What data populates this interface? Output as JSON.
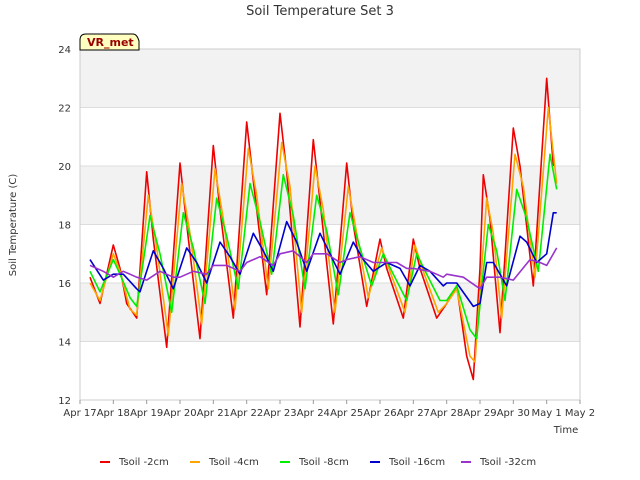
{
  "chart_data": {
    "type": "line",
    "title": "Soil Temperature Set 3",
    "xlabel": "Time",
    "ylabel": "Soil Temperature (C)",
    "ylim": [
      12,
      24
    ],
    "yticks": [
      12,
      14,
      16,
      18,
      20,
      22,
      24
    ],
    "xlim": [
      "2024-04-17",
      "2024-05-02"
    ],
    "xtick_labels": [
      "Apr 17",
      "Apr 18",
      "Apr 19",
      "Apr 20",
      "Apr 21",
      "Apr 22",
      "Apr 23",
      "Apr 24",
      "Apr 25",
      "Apr 26",
      "Apr 27",
      "Apr 28",
      "Apr 29",
      "Apr 30",
      "May 1",
      "May 2"
    ],
    "grid": "horizontal bands",
    "legend_position": "bottom",
    "annotation": "VR_met",
    "x_unit": "days",
    "series": [
      {
        "name": "Tsoil -2cm",
        "color": "#ee0000",
        "points": [
          [
            0.3,
            16.2
          ],
          [
            0.6,
            15.3
          ],
          [
            1.0,
            17.3
          ],
          [
            1.2,
            16.5
          ],
          [
            1.4,
            15.3
          ],
          [
            1.7,
            14.8
          ],
          [
            2.0,
            19.8
          ],
          [
            2.2,
            17.5
          ],
          [
            2.6,
            13.8
          ],
          [
            3.0,
            20.1
          ],
          [
            3.2,
            18.0
          ],
          [
            3.6,
            14.1
          ],
          [
            4.0,
            20.7
          ],
          [
            4.2,
            18.5
          ],
          [
            4.6,
            14.8
          ],
          [
            5.0,
            21.5
          ],
          [
            5.2,
            19.5
          ],
          [
            5.6,
            15.6
          ],
          [
            6.0,
            21.8
          ],
          [
            6.2,
            19.8
          ],
          [
            6.6,
            14.5
          ],
          [
            7.0,
            20.9
          ],
          [
            7.2,
            18.8
          ],
          [
            7.6,
            14.6
          ],
          [
            8.0,
            20.1
          ],
          [
            8.2,
            18.0
          ],
          [
            8.6,
            15.2
          ],
          [
            9.0,
            17.5
          ],
          [
            9.2,
            16.5
          ],
          [
            9.7,
            14.8
          ],
          [
            10.0,
            17.5
          ],
          [
            10.2,
            16.5
          ],
          [
            10.7,
            14.8
          ],
          [
            11.0,
            15.3
          ],
          [
            11.3,
            15.9
          ],
          [
            11.6,
            13.5
          ],
          [
            11.8,
            12.7
          ],
          [
            12.0,
            16.5
          ],
          [
            12.1,
            19.7
          ],
          [
            12.3,
            18.2
          ],
          [
            12.6,
            14.3
          ],
          [
            13.0,
            21.3
          ],
          [
            13.2,
            20.0
          ],
          [
            13.6,
            15.9
          ],
          [
            14.0,
            23.0
          ],
          [
            14.2,
            20.0
          ]
        ]
      },
      {
        "name": "Tsoil -4cm",
        "color": "#ffa500",
        "points": [
          [
            0.3,
            16.0
          ],
          [
            0.6,
            15.4
          ],
          [
            1.0,
            17.0
          ],
          [
            1.2,
            16.4
          ],
          [
            1.5,
            15.1
          ],
          [
            1.7,
            14.9
          ],
          [
            2.05,
            19.0
          ],
          [
            2.3,
            17.2
          ],
          [
            2.65,
            14.2
          ],
          [
            3.05,
            19.4
          ],
          [
            3.3,
            17.7
          ],
          [
            3.65,
            14.6
          ],
          [
            4.05,
            19.9
          ],
          [
            4.3,
            18.2
          ],
          [
            4.65,
            15.1
          ],
          [
            5.05,
            20.6
          ],
          [
            5.3,
            19.0
          ],
          [
            5.65,
            15.8
          ],
          [
            6.05,
            20.8
          ],
          [
            6.3,
            19.3
          ],
          [
            6.65,
            15.0
          ],
          [
            7.05,
            20.0
          ],
          [
            7.3,
            18.5
          ],
          [
            7.65,
            15.0
          ],
          [
            8.05,
            19.3
          ],
          [
            8.3,
            17.7
          ],
          [
            8.65,
            15.5
          ],
          [
            9.05,
            17.2
          ],
          [
            9.3,
            16.4
          ],
          [
            9.75,
            15.0
          ],
          [
            10.05,
            17.3
          ],
          [
            10.3,
            16.4
          ],
          [
            10.75,
            15.0
          ],
          [
            11.0,
            15.3
          ],
          [
            11.3,
            15.8
          ],
          [
            11.7,
            13.5
          ],
          [
            11.85,
            13.3
          ],
          [
            12.05,
            16.5
          ],
          [
            12.2,
            18.9
          ],
          [
            12.4,
            17.7
          ],
          [
            12.65,
            14.8
          ],
          [
            13.05,
            20.4
          ],
          [
            13.3,
            19.3
          ],
          [
            13.65,
            16.2
          ],
          [
            14.05,
            22.0
          ],
          [
            14.3,
            19.4
          ]
        ]
      },
      {
        "name": "Tsoil -8cm",
        "color": "#00ee00",
        "points": [
          [
            0.3,
            16.4
          ],
          [
            0.6,
            15.7
          ],
          [
            1.0,
            16.8
          ],
          [
            1.2,
            16.3
          ],
          [
            1.5,
            15.5
          ],
          [
            1.7,
            15.2
          ],
          [
            2.1,
            18.3
          ],
          [
            2.4,
            17.0
          ],
          [
            2.75,
            15.0
          ],
          [
            3.1,
            18.4
          ],
          [
            3.4,
            17.2
          ],
          [
            3.75,
            15.3
          ],
          [
            4.1,
            18.9
          ],
          [
            4.4,
            17.6
          ],
          [
            4.75,
            15.8
          ],
          [
            5.1,
            19.4
          ],
          [
            5.4,
            18.1
          ],
          [
            5.75,
            16.3
          ],
          [
            6.1,
            19.7
          ],
          [
            6.4,
            18.3
          ],
          [
            6.75,
            15.8
          ],
          [
            7.1,
            19.0
          ],
          [
            7.4,
            17.8
          ],
          [
            7.75,
            15.6
          ],
          [
            8.1,
            18.4
          ],
          [
            8.4,
            17.2
          ],
          [
            8.75,
            15.9
          ],
          [
            9.1,
            17.0
          ],
          [
            9.4,
            16.3
          ],
          [
            9.8,
            15.4
          ],
          [
            10.1,
            17.0
          ],
          [
            10.4,
            16.3
          ],
          [
            10.8,
            15.4
          ],
          [
            11.0,
            15.4
          ],
          [
            11.3,
            15.9
          ],
          [
            11.7,
            14.4
          ],
          [
            11.9,
            14.1
          ],
          [
            12.1,
            16.4
          ],
          [
            12.25,
            18.0
          ],
          [
            12.5,
            17.1
          ],
          [
            12.75,
            15.4
          ],
          [
            13.1,
            19.2
          ],
          [
            13.4,
            18.2
          ],
          [
            13.75,
            16.4
          ],
          [
            14.1,
            20.4
          ],
          [
            14.3,
            19.2
          ]
        ]
      },
      {
        "name": "Tsoil -16cm",
        "color": "#0000cc",
        "points": [
          [
            0.3,
            16.8
          ],
          [
            0.7,
            16.1
          ],
          [
            1.0,
            16.3
          ],
          [
            1.3,
            16.3
          ],
          [
            1.7,
            15.8
          ],
          [
            1.8,
            15.7
          ],
          [
            2.2,
            17.1
          ],
          [
            2.5,
            16.5
          ],
          [
            2.8,
            15.8
          ],
          [
            3.2,
            17.2
          ],
          [
            3.5,
            16.7
          ],
          [
            3.8,
            16.0
          ],
          [
            4.2,
            17.4
          ],
          [
            4.5,
            16.9
          ],
          [
            4.8,
            16.3
          ],
          [
            5.2,
            17.7
          ],
          [
            5.5,
            17.1
          ],
          [
            5.8,
            16.4
          ],
          [
            6.2,
            18.1
          ],
          [
            6.5,
            17.4
          ],
          [
            6.8,
            16.4
          ],
          [
            7.2,
            17.7
          ],
          [
            7.5,
            17.0
          ],
          [
            7.8,
            16.3
          ],
          [
            8.2,
            17.4
          ],
          [
            8.5,
            16.8
          ],
          [
            8.8,
            16.4
          ],
          [
            9.2,
            16.7
          ],
          [
            9.6,
            16.5
          ],
          [
            9.9,
            15.9
          ],
          [
            10.2,
            16.6
          ],
          [
            10.5,
            16.4
          ],
          [
            10.9,
            15.9
          ],
          [
            11.0,
            16.0
          ],
          [
            11.3,
            16.0
          ],
          [
            11.8,
            15.2
          ],
          [
            12.0,
            15.3
          ],
          [
            12.2,
            16.7
          ],
          [
            12.4,
            16.7
          ],
          [
            12.6,
            16.3
          ],
          [
            12.8,
            15.9
          ],
          [
            13.2,
            17.6
          ],
          [
            13.4,
            17.4
          ],
          [
            13.7,
            16.7
          ],
          [
            14.0,
            17.0
          ],
          [
            14.2,
            18.4
          ],
          [
            14.3,
            18.4
          ]
        ]
      },
      {
        "name": "Tsoil -32cm",
        "color": "#9933cc",
        "points": [
          [
            0.3,
            16.6
          ],
          [
            0.7,
            16.4
          ],
          [
            1.0,
            16.2
          ],
          [
            1.3,
            16.4
          ],
          [
            1.7,
            16.2
          ],
          [
            2.0,
            16.1
          ],
          [
            2.4,
            16.4
          ],
          [
            2.8,
            16.2
          ],
          [
            3.0,
            16.2
          ],
          [
            3.4,
            16.4
          ],
          [
            3.8,
            16.3
          ],
          [
            4.0,
            16.6
          ],
          [
            4.4,
            16.6
          ],
          [
            4.8,
            16.4
          ],
          [
            5.0,
            16.7
          ],
          [
            5.4,
            16.9
          ],
          [
            5.8,
            16.6
          ],
          [
            6.0,
            17.0
          ],
          [
            6.4,
            17.1
          ],
          [
            6.8,
            16.7
          ],
          [
            7.0,
            17.0
          ],
          [
            7.4,
            17.0
          ],
          [
            7.8,
            16.7
          ],
          [
            8.0,
            16.8
          ],
          [
            8.4,
            16.9
          ],
          [
            8.8,
            16.7
          ],
          [
            9.0,
            16.7
          ],
          [
            9.5,
            16.7
          ],
          [
            9.8,
            16.5
          ],
          [
            10.0,
            16.5
          ],
          [
            10.5,
            16.4
          ],
          [
            10.9,
            16.2
          ],
          [
            11.0,
            16.3
          ],
          [
            11.5,
            16.2
          ],
          [
            12.0,
            15.8
          ],
          [
            12.2,
            16.2
          ],
          [
            12.6,
            16.2
          ],
          [
            13.0,
            16.1
          ],
          [
            13.5,
            16.8
          ],
          [
            13.8,
            16.7
          ],
          [
            14.0,
            16.6
          ],
          [
            14.3,
            17.2
          ]
        ]
      }
    ]
  }
}
